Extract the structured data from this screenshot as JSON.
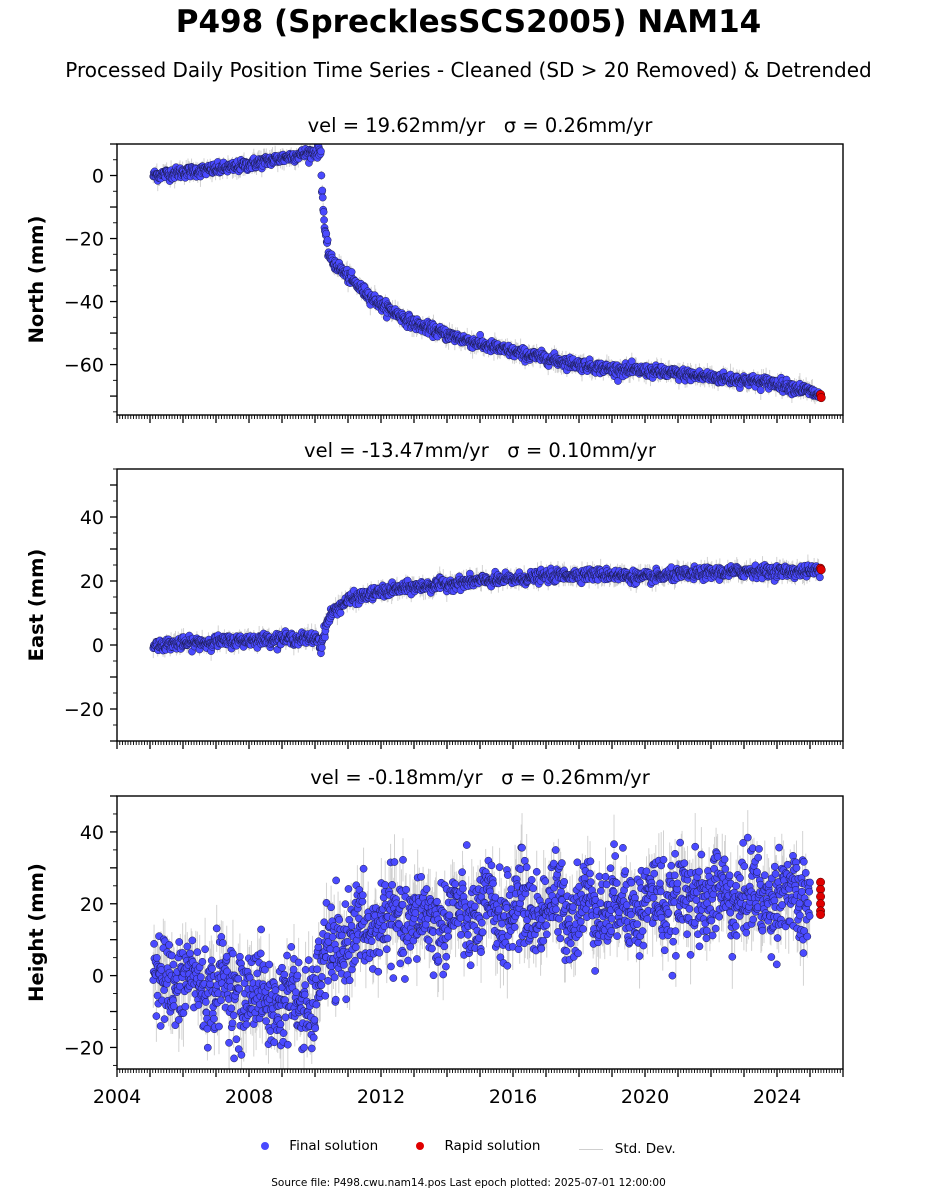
{
  "title": "P498 (SprecklesSCS2005) NAM14",
  "subtitle": "Processed Daily Position Time Series - Cleaned (SD > 20 Removed) & Detrended",
  "colors": {
    "final": "#4a4aff",
    "rapid": "#e00000",
    "stddev": "#c8c8c8",
    "edge": "#1a1a4a"
  },
  "chart_data": [
    {
      "type": "scatter",
      "panel_title": "vel = 19.62mm/yr   σ = 0.26mm/yr",
      "ylabel": "North (mm)",
      "xlim": [
        2004,
        2026
      ],
      "ylim": [
        -76,
        10
      ],
      "yticks": [
        "0",
        "−20",
        "−40",
        "−60"
      ],
      "yticks_values": [
        0,
        -20,
        -40,
        -60
      ],
      "xticks": [],
      "series": [
        {
          "key": "final",
          "x": [
            2005.1,
            2005.5,
            2006.0,
            2006.5,
            2007.0,
            2007.5,
            2008.0,
            2008.5,
            2009.0,
            2009.5,
            2010.0,
            2010.18,
            2010.2,
            2010.25,
            2010.3,
            2010.4,
            2010.5,
            2011.0,
            2011.5,
            2012.0,
            2012.5,
            2013.0,
            2014.0,
            2015.0,
            2016.0,
            2017.0,
            2018.0,
            2019.0,
            2020.0,
            2021.0,
            2022.0,
            2023.0,
            2024.0,
            2025.0,
            2025.3
          ],
          "y": [
            0,
            0.5,
            1,
            1.5,
            2,
            2.5,
            3.5,
            4.5,
            5.5,
            6.5,
            7.5,
            7.5,
            -2,
            -10,
            -18,
            -24,
            -27,
            -32,
            -37,
            -41,
            -44,
            -47,
            -50.5,
            -53.5,
            -56,
            -58,
            -60,
            -61.5,
            -62,
            -63,
            -64,
            -65,
            -66,
            -68.5,
            -70
          ]
        },
        {
          "key": "rapid",
          "x": [
            2025.32,
            2025.34
          ],
          "y": [
            -69.5,
            -70.5
          ]
        }
      ]
    },
    {
      "type": "scatter",
      "panel_title": "vel = -13.47mm/yr   σ = 0.10mm/yr",
      "ylabel": "East (mm)",
      "xlim": [
        2004,
        2026
      ],
      "ylim": [
        -30,
        55
      ],
      "yticks": [
        "40",
        "20",
        "0",
        "−20"
      ],
      "yticks_values": [
        40,
        20,
        0,
        -20
      ],
      "xticks": [],
      "series": [
        {
          "key": "final",
          "x": [
            2005.1,
            2006.0,
            2007.0,
            2008.0,
            2009.0,
            2010.0,
            2010.1,
            2010.18,
            2010.3,
            2010.5,
            2011.0,
            2011.5,
            2012.0,
            2012.5,
            2013.0,
            2014.0,
            2015.0,
            2016.0,
            2017.0,
            2018.0,
            2019.0,
            2020.0,
            2021.0,
            2022.0,
            2023.0,
            2024.0,
            2025.0,
            2025.3
          ],
          "y": [
            0,
            0.5,
            1,
            1.5,
            2,
            2,
            2,
            -1,
            5,
            10,
            14,
            15.5,
            16.5,
            17.5,
            18,
            19,
            20,
            20.5,
            21.5,
            22,
            22,
            21,
            22,
            22.5,
            23,
            23,
            23,
            23.5
          ]
        },
        {
          "key": "rapid",
          "x": [
            2025.32,
            2025.34
          ],
          "y": [
            24,
            23.5
          ]
        }
      ]
    },
    {
      "type": "scatter",
      "panel_title": "vel = -0.18mm/yr   σ = 0.26mm/yr",
      "ylabel": "Height (mm)",
      "xlim": [
        2004,
        2026
      ],
      "ylim": [
        -26,
        50
      ],
      "yticks": [
        "40",
        "20",
        "0",
        "−20"
      ],
      "yticks_values": [
        40,
        20,
        0,
        -20
      ],
      "xticks": [
        "2004",
        "2008",
        "2012",
        "2016",
        "2020",
        "2024"
      ],
      "xticks_values": [
        2004,
        2008,
        2012,
        2016,
        2020,
        2024
      ],
      "series": [
        {
          "key": "final",
          "x": [
            2005.1,
            2006.0,
            2007.0,
            2008.0,
            2009.0,
            2010.0,
            2010.3,
            2011.0,
            2012.0,
            2013.0,
            2014.0,
            2015.0,
            2016.0,
            2017.0,
            2018.0,
            2019.0,
            2020.0,
            2021.0,
            2022.0,
            2023.0,
            2024.0,
            2025.0
          ],
          "y": [
            0,
            -2,
            -3,
            -5,
            -7,
            -8,
            5,
            10,
            15,
            15,
            16,
            17,
            18,
            19,
            19,
            20,
            20,
            21,
            22,
            22,
            22,
            21
          ],
          "scatter_sd": 6
        },
        {
          "key": "rapid",
          "x": [
            2025.32,
            2025.32,
            2025.32,
            2025.32,
            2025.32,
            2025.32
          ],
          "y": [
            26,
            24,
            22,
            20,
            18,
            17
          ]
        }
      ]
    }
  ],
  "legend": {
    "final": "Final solution",
    "rapid": "Rapid solution",
    "stddev": "Std. Dev."
  },
  "source": "Source file: P498.cwu.nam14.pos  Last epoch plotted: 2025-07-01 12:00:00"
}
